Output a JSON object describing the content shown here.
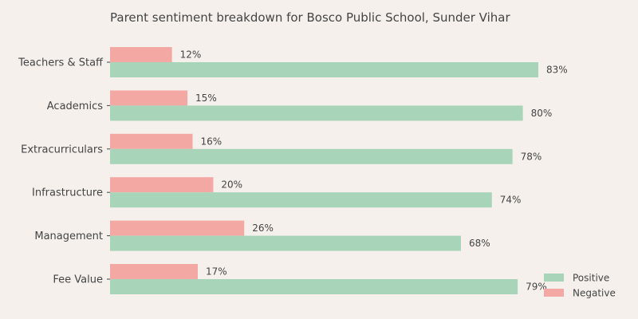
{
  "chart_data": {
    "type": "bar",
    "orientation": "horizontal",
    "title": "Parent sentiment breakdown for Bosco Public School, Sunder Vihar",
    "xlabel": "",
    "ylabel": "",
    "xlim": [
      0,
      100
    ],
    "grid": false,
    "legend_position": "bottom-right",
    "value_suffix": "%",
    "categories": [
      "Teachers & Staff",
      "Academics",
      "Extracurriculars",
      "Infrastructure",
      "Management",
      "Fee Value"
    ],
    "series": [
      {
        "name": "Positive",
        "color": "#a8d5ba",
        "values": [
          83,
          80,
          78,
          74,
          68,
          79
        ]
      },
      {
        "name": "Negative",
        "color": "#f4a8a4",
        "values": [
          12,
          15,
          16,
          20,
          26,
          17
        ]
      }
    ]
  }
}
